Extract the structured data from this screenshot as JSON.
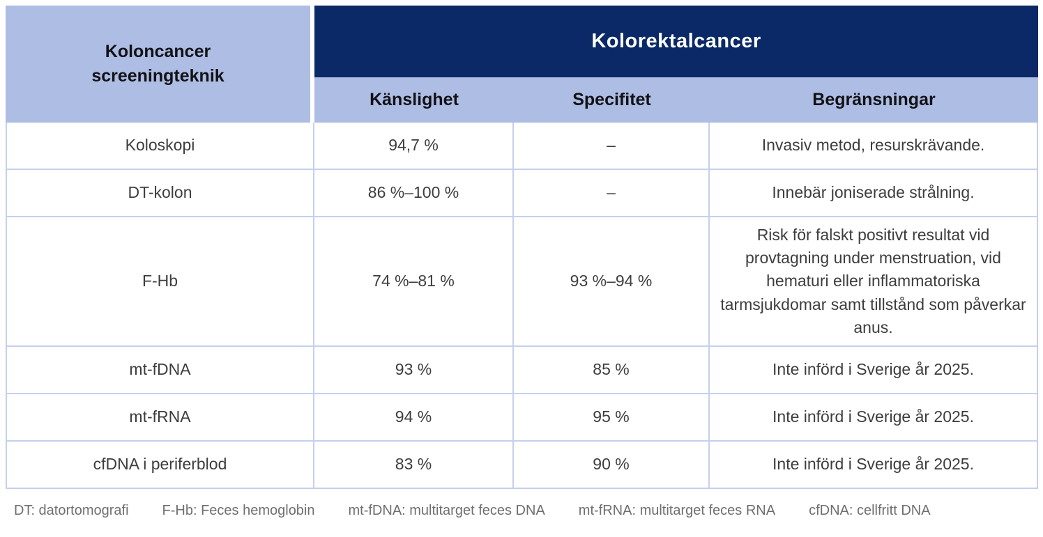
{
  "chart_data": {
    "type": "table",
    "corner_header": "Koloncancer\nscreeningteknik",
    "group_header": "Kolorektalcancer",
    "sub_headers": [
      "Känslighet",
      "Specifitet",
      "Begränsningar"
    ],
    "rows": [
      {
        "technique": "Koloskopi",
        "kanslighet": "94,7 %",
        "specifitet": "–",
        "begransningar": "Invasiv metod, resurskrävande."
      },
      {
        "technique": "DT-kolon",
        "kanslighet": "86 %–100 %",
        "specifitet": "–",
        "begransningar": "Innebär joniserade strålning."
      },
      {
        "technique": "F-Hb",
        "kanslighet": "74 %–81 %",
        "specifitet": "93 %–94 %",
        "begransningar": "Risk för falskt positivt resultat vid provtagning under menstruation, vid hematuri eller inflammatoriska tarmsjukdomar samt tillstånd som påverkar anus."
      },
      {
        "technique": "mt-fDNA",
        "kanslighet": "93 %",
        "specifitet": "85 %",
        "begransningar": "Inte införd i Sverige år 2025."
      },
      {
        "technique": "mt-fRNA",
        "kanslighet": "94 %",
        "specifitet": "95 %",
        "begransningar": "Inte införd i Sverige år 2025."
      },
      {
        "technique": "cfDNA i periferblod",
        "kanslighet": "83 %",
        "specifitet": "90 %",
        "begransningar": "Inte införd i Sverige år 2025."
      }
    ],
    "footnotes": [
      "DT: datortomografi",
      "F-Hb: Feces hemoglobin",
      "mt-fDNA: multitarget feces DNA",
      "mt-fRNA: multitarget feces RNA",
      "cfDNA: cellfritt DNA"
    ],
    "colors": {
      "navy_header": "#0a2966",
      "periwinkle_header": "#aebde4",
      "body_border": "#c5d0ee",
      "body_text": "#3d3d3d",
      "footnote_text": "#6f6f6f"
    },
    "layout": {
      "grid": true,
      "legend_position": "none"
    }
  }
}
